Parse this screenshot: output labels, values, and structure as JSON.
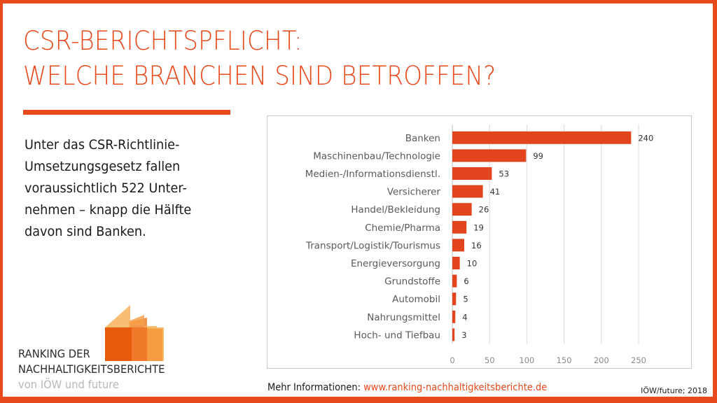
{
  "slide": {
    "title_line1": "CSR-BERICHTSPFLICHT:",
    "title_line2": "WELCHE BRANCHEN SIND BETROFFEN?",
    "body_lines": [
      "Unter das CSR-Richtlinie-",
      "Umsetzungsgesetz fallen",
      "voraussichtlich 522 Unter-",
      "nehmen – knapp die Hälfte",
      "davon sind Banken."
    ],
    "brand": {
      "line1": "RANKING DER",
      "line2": "NACHHALTIGKEITSBERICHTE",
      "line3": "von IÖW und future"
    },
    "footer": {
      "info_label": "Mehr Informationen: ",
      "link_text": "www.ranking-nachhaltigkeitsberichte.de",
      "credit": "IÖW/future; 2018"
    },
    "colors": {
      "accent": "#e84a1c",
      "bar": "#e2441e",
      "gridline": "#d9d9d9",
      "label": "#595959",
      "logo_dark": "#e85a0c",
      "logo_mid": "#f08a3a",
      "logo_light": "#f7b25a"
    }
  },
  "chart_data": {
    "type": "bar",
    "orientation": "horizontal",
    "title": "",
    "xlabel": "",
    "ylabel": "",
    "categories": [
      "Banken",
      "Maschinenbau/Technologie",
      "Medien-/Informationsdienstl.",
      "Versicherer",
      "Handel/Bekleidung",
      "Chemie/Pharma",
      "Transport/Logistik/Tourismus",
      "Energieversorgung",
      "Grundstoffe",
      "Automobil",
      "Nahrungsmittel",
      "Hoch- und Tiefbau"
    ],
    "values": [
      240,
      99,
      53,
      41,
      26,
      19,
      16,
      10,
      6,
      5,
      4,
      3
    ],
    "data_labels": [
      "240",
      "99",
      "53",
      "41",
      "26",
      "19",
      "16",
      "10",
      "6",
      "5",
      "4",
      "3"
    ],
    "xlim": [
      0,
      250
    ],
    "xticks": [
      0,
      50,
      100,
      150,
      200,
      250
    ],
    "xtick_labels": [
      "0",
      "50",
      "100",
      "150",
      "200",
      "250"
    ],
    "grid": true,
    "legend": "none"
  }
}
